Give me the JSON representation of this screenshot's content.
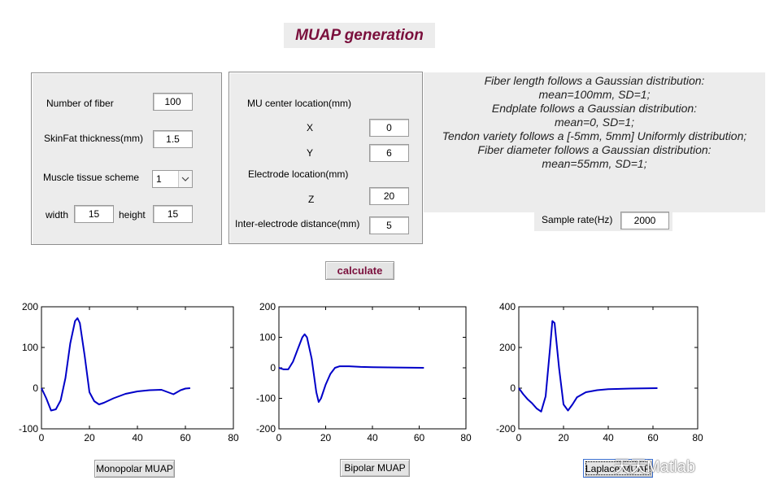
{
  "title": "MUAP generation",
  "left_panel": {
    "num_fiber_label": "Number of fiber",
    "num_fiber_value": "100",
    "skinfat_label": "SkinFat thickness(mm)",
    "skinfat_value": "1.5",
    "muscle_label": "Muscle tissue scheme",
    "muscle_value": "1",
    "width_label": "width",
    "width_value": "15",
    "height_label": "height",
    "height_value": "15"
  },
  "mid_panel": {
    "mu_center_label": "MU center location(mm)",
    "x_label": "X",
    "x_value": "0",
    "y_label": "Y",
    "y_value": "6",
    "electrode_label": "Electrode location(mm)",
    "z_label": "Z",
    "z_value": "20",
    "ied_label": "Inter-electrode distance(mm)",
    "ied_value": "5"
  },
  "info_lines": [
    "Fiber length follows a Gaussian distribution:",
    "mean=100mm, SD=1;",
    "Endplate follows a Gaussian distribution:",
    "mean=0, SD=1;",
    "Tendon variety follows a [-5mm, 5mm] Uniformly distribution;",
    "Fiber diameter follows a Gaussian distribution:",
    "mean=55mm, SD=1;"
  ],
  "sample_rate": {
    "label": "Sample rate(Hz)",
    "value": "2000"
  },
  "calculate_label": "calculate",
  "buttons": {
    "monopolar": "Monopolar MUAP",
    "bipolar": "Bipolar MUAP",
    "laplace": "Laplace MUAP"
  },
  "watermark": "天天Matlab",
  "colors": {
    "accent": "#7a0f3c",
    "line": "#0000c8",
    "panel": "#ececec"
  },
  "chart_data": [
    {
      "type": "line",
      "xlim": [
        0,
        80
      ],
      "ylim": [
        -100,
        200
      ],
      "xticks": [
        0,
        20,
        40,
        60,
        80
      ],
      "yticks": [
        -100,
        0,
        100,
        200
      ],
      "series": [
        {
          "x": [
            0,
            2,
            4,
            6,
            8,
            10,
            12,
            14,
            15,
            16,
            18,
            20,
            22,
            24,
            26,
            30,
            35,
            40,
            45,
            50,
            55,
            58,
            60,
            62
          ],
          "values": [
            0,
            -25,
            -55,
            -52,
            -30,
            25,
            110,
            165,
            172,
            160,
            80,
            -10,
            -32,
            -40,
            -36,
            -25,
            -14,
            -8,
            -5,
            -4,
            -15,
            -5,
            -1,
            0
          ]
        }
      ]
    },
    {
      "type": "line",
      "xlim": [
        0,
        80
      ],
      "ylim": [
        -200,
        200
      ],
      "xticks": [
        0,
        20,
        40,
        60,
        80
      ],
      "yticks": [
        -200,
        -100,
        0,
        100,
        200
      ],
      "series": [
        {
          "x": [
            0,
            2,
            4,
            6,
            8,
            10,
            11,
            12,
            14,
            16,
            17,
            18,
            20,
            22,
            24,
            26,
            30,
            35,
            40,
            50,
            62
          ],
          "values": [
            0,
            -5,
            -5,
            20,
            60,
            100,
            110,
            100,
            30,
            -80,
            -112,
            -100,
            -55,
            -20,
            0,
            5,
            5,
            3,
            2,
            1,
            0
          ]
        }
      ]
    },
    {
      "type": "line",
      "xlim": [
        0,
        80
      ],
      "ylim": [
        -200,
        400
      ],
      "xticks": [
        0,
        20,
        40,
        60,
        80
      ],
      "yticks": [
        -200,
        0,
        200,
        400
      ],
      "series": [
        {
          "x": [
            0,
            2,
            4,
            6,
            8,
            10,
            12,
            14,
            15,
            16,
            18,
            20,
            22,
            24,
            26,
            30,
            35,
            40,
            50,
            62
          ],
          "values": [
            0,
            -30,
            -55,
            -75,
            -100,
            -115,
            -40,
            200,
            330,
            320,
            100,
            -80,
            -110,
            -80,
            -45,
            -20,
            -10,
            -5,
            -2,
            0
          ]
        }
      ]
    }
  ]
}
